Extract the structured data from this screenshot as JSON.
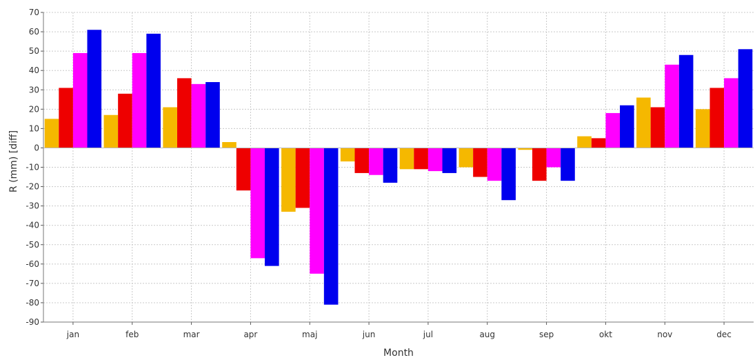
{
  "chart_data": {
    "type": "bar",
    "xlabel": "Month",
    "ylabel": "R (mm) [diff]",
    "ylim": [
      -90,
      70
    ],
    "yticks": [
      70,
      60,
      50,
      40,
      30,
      20,
      10,
      0,
      -10,
      -20,
      -30,
      -40,
      -50,
      -60,
      -70,
      -80,
      -90
    ],
    "grid": true,
    "categories": [
      "jan",
      "feb",
      "mar",
      "apr",
      "maj",
      "jun",
      "jul",
      "aug",
      "sep",
      "okt",
      "nov",
      "dec"
    ],
    "series": [
      {
        "color": "#f5b800",
        "values": [
          15,
          17,
          21,
          3,
          -33,
          -7,
          -11,
          -10,
          -1,
          6,
          26,
          20
        ]
      },
      {
        "color": "#ee0000",
        "values": [
          31,
          28,
          36,
          -22,
          -31,
          -13,
          -11,
          -15,
          -17,
          5,
          21,
          31
        ]
      },
      {
        "color": "#ff00ff",
        "values": [
          49,
          49,
          33,
          -57,
          -65,
          -14,
          -12,
          -17,
          -10,
          18,
          43,
          36
        ]
      },
      {
        "color": "#0000ee",
        "values": [
          61,
          59,
          34,
          -61,
          -81,
          -18,
          -13,
          -27,
          -17,
          22,
          48,
          51
        ]
      }
    ]
  }
}
